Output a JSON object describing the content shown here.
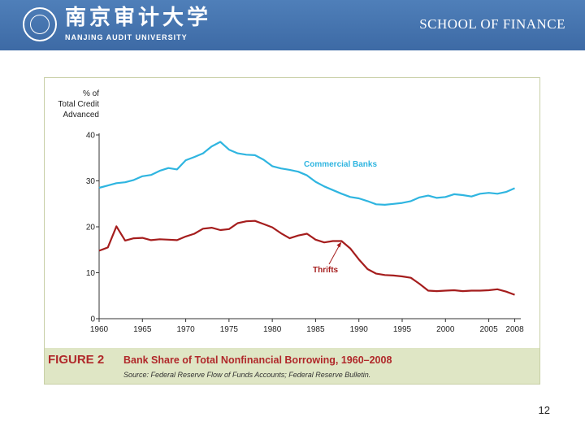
{
  "header": {
    "logo_cn": "南京审计大学",
    "logo_en": "NANJING AUDIT UNIVERSITY",
    "school": "SCHOOL OF FINANCE"
  },
  "figure": {
    "label": "FIGURE 2",
    "title": "Bank Share of Total Nonfinancial Borrowing, 1960–2008",
    "source": "Source: Federal Reserve Flow of Funds Accounts; Federal Reserve Bulletin."
  },
  "page_number": "12",
  "colors": {
    "commercial_banks": "#2fb5e0",
    "thrifts": "#a51d1d"
  },
  "chart_data": {
    "type": "line",
    "ylabel_lines": [
      "% of",
      "Total Credit",
      "Advanced"
    ],
    "ylim": [
      0,
      40
    ],
    "yticks": [
      0,
      10,
      20,
      30,
      40
    ],
    "xlim": [
      1960,
      2008.7
    ],
    "xticks": [
      1960,
      1965,
      1970,
      1975,
      1980,
      1985,
      1990,
      1995,
      2000,
      2005,
      2008
    ],
    "series": [
      {
        "name": "Commercial Banks",
        "x": [
          1960,
          1961,
          1962,
          1963,
          1964,
          1965,
          1966,
          1967,
          1968,
          1969,
          1970,
          1971,
          1972,
          1973,
          1974,
          1975,
          1976,
          1977,
          1978,
          1979,
          1980,
          1981,
          1982,
          1983,
          1984,
          1985,
          1986,
          1987,
          1988,
          1989,
          1990,
          1991,
          1992,
          1993,
          1994,
          1995,
          1996,
          1997,
          1998,
          1999,
          2000,
          2001,
          2002,
          2003,
          2004,
          2005,
          2006,
          2007,
          2008
        ],
        "values": [
          28.5,
          29,
          29.5,
          29.7,
          30.2,
          31,
          31.3,
          32.2,
          32.8,
          32.5,
          34.5,
          35.2,
          36,
          37.5,
          38.5,
          36.8,
          36,
          35.7,
          35.6,
          34.6,
          33.2,
          32.7,
          32.4,
          32,
          31.2,
          29.8,
          28.8,
          28,
          27.2,
          26.5,
          26.2,
          25.6,
          24.9,
          24.8,
          25,
          25.2,
          25.6,
          26.4,
          26.8,
          26.3,
          26.5,
          27.1,
          26.9,
          26.6,
          27.2,
          27.4,
          27.2,
          27.6,
          28.4
        ]
      },
      {
        "name": "Thrifts",
        "x": [
          1960,
          1961,
          1962,
          1963,
          1964,
          1965,
          1966,
          1967,
          1968,
          1969,
          1970,
          1971,
          1972,
          1973,
          1974,
          1975,
          1976,
          1977,
          1978,
          1979,
          1980,
          1981,
          1982,
          1983,
          1984,
          1985,
          1986,
          1987,
          1988,
          1989,
          1990,
          1991,
          1992,
          1993,
          1994,
          1995,
          1996,
          1997,
          1998,
          1999,
          2000,
          2001,
          2002,
          2003,
          2004,
          2005,
          2006,
          2007,
          2008
        ],
        "values": [
          14.8,
          15.5,
          20.1,
          17,
          17.5,
          17.6,
          17.1,
          17.3,
          17.2,
          17.1,
          17.9,
          18.5,
          19.6,
          19.8,
          19.3,
          19.5,
          20.8,
          21.2,
          21.3,
          20.6,
          19.9,
          18.6,
          17.5,
          18.1,
          18.5,
          17.2,
          16.6,
          16.9,
          16.9,
          15.3,
          12.9,
          10.8,
          9.8,
          9.5,
          9.4,
          9.2,
          8.9,
          7.6,
          6.1,
          6,
          6.1,
          6.2,
          6,
          6.1,
          6.1,
          6.2,
          6.4,
          5.9,
          5.2
        ]
      }
    ],
    "annotations": [
      {
        "text": "Commercial Banks",
        "series": "Commercial Banks"
      },
      {
        "text": "Thrifts",
        "series": "Thrifts"
      }
    ]
  }
}
